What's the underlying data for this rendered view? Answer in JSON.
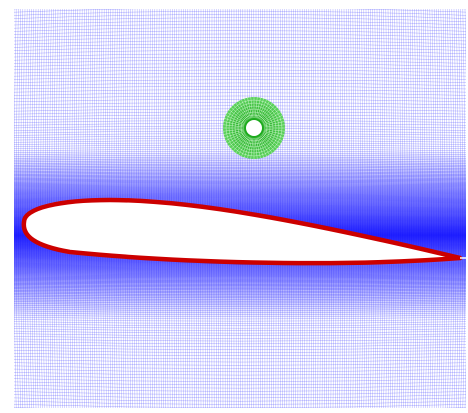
{
  "figure": {
    "description_free": true,
    "elements": {
      "background_mesh": {
        "kind": "structured-grid",
        "color": "#2a2aff"
      },
      "near_wall_refinement": {
        "color": "#1010ff"
      },
      "airfoil": {
        "kind": "airfoil-surface",
        "fill": "#ffffff",
        "outline": "#cc0000"
      },
      "overset_disk": {
        "kind": "circular-overset-grid",
        "color": "#2bbf2b",
        "hole": "#ffffff"
      }
    }
  }
}
